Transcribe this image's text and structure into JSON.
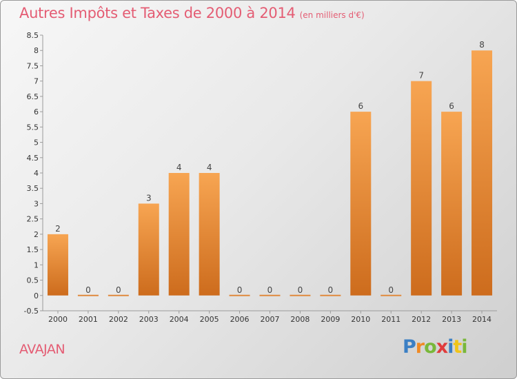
{
  "chart_data": {
    "type": "bar",
    "title": "Autres Impôts et Taxes de 2000 à 2014",
    "unit_label": "(en milliers d'€)",
    "categories": [
      "2000",
      "2001",
      "2002",
      "2003",
      "2004",
      "2005",
      "2006",
      "2007",
      "2008",
      "2009",
      "2010",
      "2011",
      "2012",
      "2013",
      "2014"
    ],
    "values": [
      2,
      0,
      0,
      3,
      4,
      4,
      0,
      0,
      0,
      0,
      6,
      0,
      7,
      6,
      8
    ],
    "data_labels": [
      "2",
      "0",
      "0",
      "3",
      "4",
      "4",
      "0",
      "0",
      "0",
      "0",
      "6",
      "0",
      "7",
      "6",
      "8"
    ],
    "yticks": [
      "-0.5",
      "0",
      "0.5",
      "1",
      "1.5",
      "2",
      "2.5",
      "3",
      "3.5",
      "4",
      "4.5",
      "5",
      "5.5",
      "6",
      "6.5",
      "7",
      "7.5",
      "8",
      "8.5"
    ],
    "ylim": [
      -0.5,
      8.5
    ],
    "grid": false,
    "legend": "none",
    "bar_color": "#f0923a"
  },
  "commune": "AVAJAN",
  "brand": {
    "letters": [
      "P",
      "r",
      "o",
      "x",
      "i",
      "t",
      "i"
    ],
    "colors": [
      "#3b7fc4",
      "#f08a24",
      "#79b83a",
      "#e03c3c",
      "#3b7fc4",
      "#f0c419",
      "#79b83a"
    ]
  }
}
